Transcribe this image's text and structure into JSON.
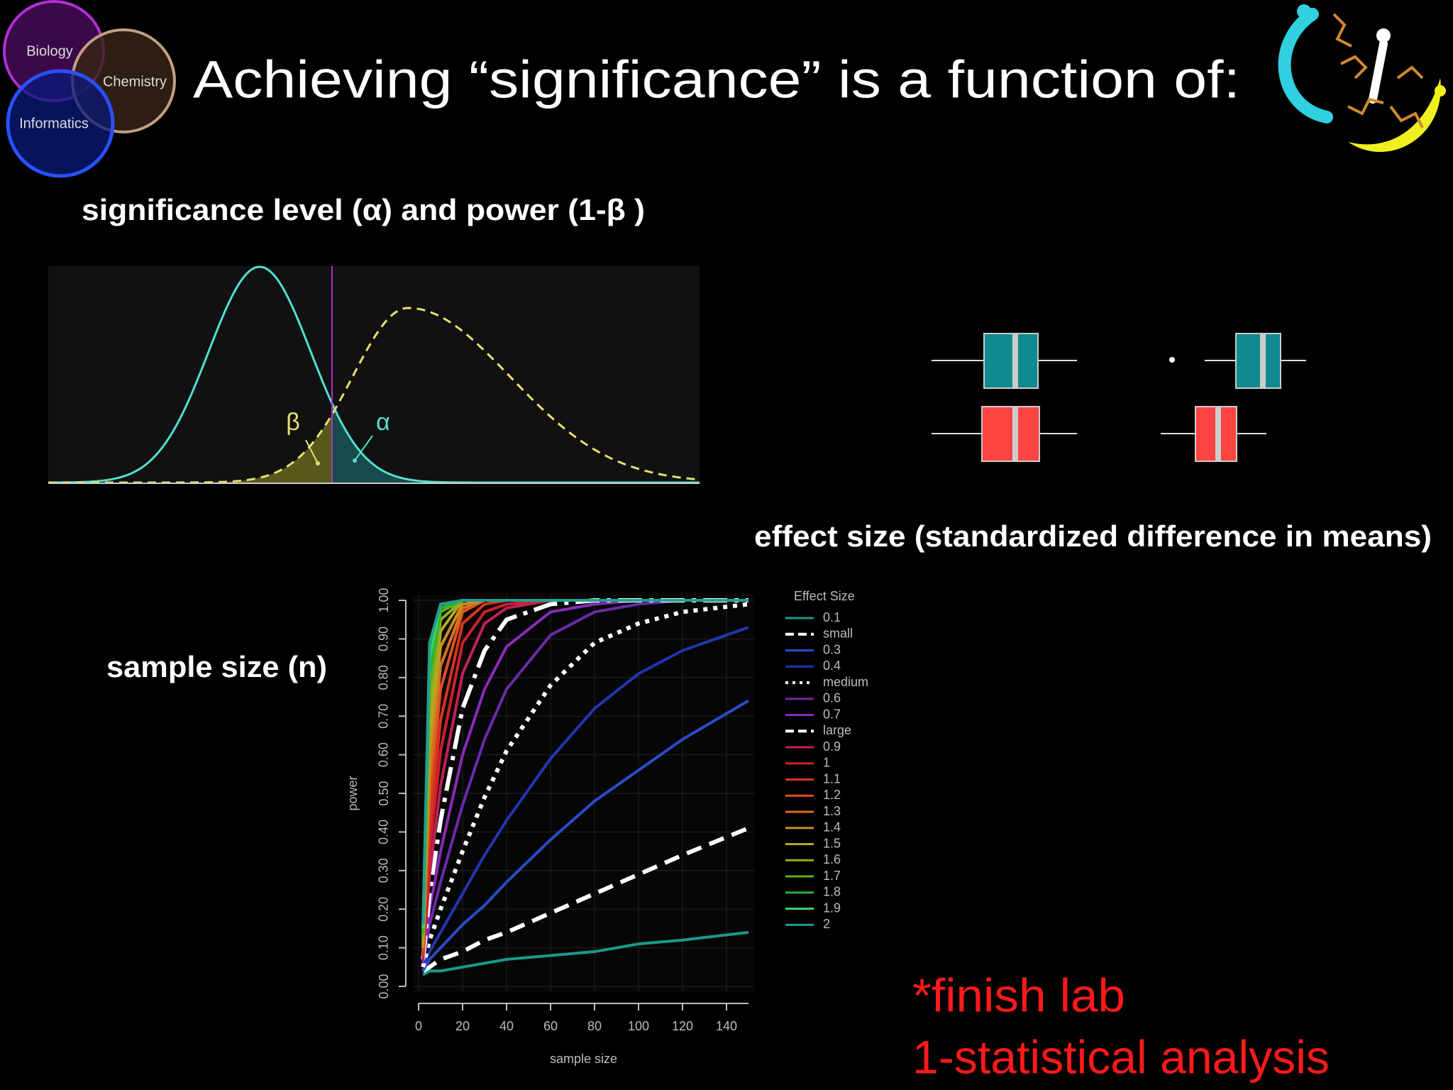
{
  "header": {
    "title": "Achieving “significance” is a function of:",
    "venn": [
      "Biology",
      "Chemistry",
      "Informatics"
    ]
  },
  "sections": {
    "alpha_power": "significance level (α) and power (1-β )",
    "effect_size": "effect size (standardized difference in means)",
    "sample_size": "sample size (n)"
  },
  "distribution_labels": {
    "beta": "β",
    "alpha": "α"
  },
  "notes": [
    "*finish lab",
    "1-statistical analysis"
  ],
  "chart_data": {
    "type": "line",
    "x_label": "sample size",
    "y_label": "power",
    "legend_title": "Effect Size",
    "x": [
      2,
      5,
      10,
      20,
      30,
      40,
      60,
      80,
      100,
      120,
      150
    ],
    "xlim": [
      0,
      150
    ],
    "ylim": [
      0,
      1
    ],
    "xticks": [
      0,
      20,
      40,
      60,
      80,
      100,
      120,
      140
    ],
    "yticks": [
      {
        "value": 0,
        "label": "0.00"
      },
      {
        "value": 0.1,
        "label": "0.10"
      },
      {
        "value": 0.2,
        "label": "0.20"
      },
      {
        "value": 0.3,
        "label": "0.30"
      },
      {
        "value": 0.4,
        "label": "0.40"
      },
      {
        "value": 0.5,
        "label": "0.50"
      },
      {
        "value": 0.6,
        "label": "0.60"
      },
      {
        "value": 0.7,
        "label": "0.70"
      },
      {
        "value": 0.8,
        "label": "0.80"
      },
      {
        "value": 0.9,
        "label": "0.90"
      },
      {
        "value": 1,
        "label": "1.00"
      }
    ],
    "grid": true,
    "series": [
      {
        "name": "0.1",
        "color": "#1a9a8a",
        "dash": "solid",
        "values": [
          0.03,
          0.04,
          0.04,
          0.05,
          0.06,
          0.07,
          0.08,
          0.09,
          0.11,
          0.12,
          0.14
        ]
      },
      {
        "name": "small",
        "color": "#ffffff",
        "dash": "dashed",
        "values": [
          0.04,
          0.05,
          0.07,
          0.09,
          0.12,
          0.14,
          0.19,
          0.24,
          0.29,
          0.34,
          0.41
        ]
      },
      {
        "name": "0.3",
        "color": "#2a4cc8",
        "dash": "solid",
        "values": [
          0.04,
          0.07,
          0.1,
          0.16,
          0.21,
          0.27,
          0.38,
          0.48,
          0.56,
          0.64,
          0.74
        ]
      },
      {
        "name": "0.4",
        "color": "#2236b0",
        "dash": "solid",
        "values": [
          0.05,
          0.09,
          0.14,
          0.24,
          0.34,
          0.43,
          0.59,
          0.72,
          0.81,
          0.87,
          0.93
        ]
      },
      {
        "name": "medium",
        "color": "#ffffff",
        "dash": "dotted",
        "values": [
          0.05,
          0.12,
          0.2,
          0.35,
          0.49,
          0.61,
          0.78,
          0.89,
          0.94,
          0.97,
          0.99
        ]
      },
      {
        "name": "0.6",
        "color": "#6a2aa8",
        "dash": "solid",
        "values": [
          0.06,
          0.16,
          0.27,
          0.47,
          0.64,
          0.77,
          0.91,
          0.97,
          0.99,
          1,
          1
        ]
      },
      {
        "name": "0.7",
        "color": "#8a2ab8",
        "dash": "solid",
        "values": [
          0.06,
          0.2,
          0.35,
          0.6,
          0.77,
          0.88,
          0.97,
          0.99,
          1,
          1,
          1
        ]
      },
      {
        "name": "large",
        "color": "#ffffff",
        "dash": "longdash",
        "values": [
          0.07,
          0.24,
          0.43,
          0.72,
          0.87,
          0.95,
          0.99,
          1,
          1,
          1,
          1
        ]
      },
      {
        "name": "0.9",
        "color": "#c0205a",
        "dash": "solid",
        "values": [
          0.07,
          0.29,
          0.52,
          0.81,
          0.94,
          0.98,
          1,
          1,
          1,
          1,
          1
        ]
      },
      {
        "name": "1",
        "color": "#d0202a",
        "dash": "solid",
        "values": [
          0.08,
          0.35,
          0.61,
          0.89,
          0.97,
          0.99,
          1,
          1,
          1,
          1,
          1
        ]
      },
      {
        "name": "1.1",
        "color": "#d83420",
        "dash": "solid",
        "values": [
          0.08,
          0.41,
          0.69,
          0.94,
          0.99,
          1,
          1,
          1,
          1,
          1,
          1
        ]
      },
      {
        "name": "1.2",
        "color": "#e05020",
        "dash": "solid",
        "values": [
          0.09,
          0.48,
          0.77,
          0.97,
          1,
          1,
          1,
          1,
          1,
          1,
          1
        ]
      },
      {
        "name": "1.3",
        "color": "#d87020",
        "dash": "solid",
        "values": [
          0.1,
          0.54,
          0.83,
          0.98,
          1,
          1,
          1,
          1,
          1,
          1,
          1
        ]
      },
      {
        "name": "1.4",
        "color": "#c89020",
        "dash": "solid",
        "values": [
          0.1,
          0.6,
          0.88,
          0.99,
          1,
          1,
          1,
          1,
          1,
          1,
          1
        ]
      },
      {
        "name": "1.5",
        "color": "#b8a820",
        "dash": "solid",
        "values": [
          0.11,
          0.66,
          0.92,
          1,
          1,
          1,
          1,
          1,
          1,
          1,
          1
        ]
      },
      {
        "name": "1.6",
        "color": "#90b020",
        "dash": "solid",
        "values": [
          0.12,
          0.72,
          0.95,
          1,
          1,
          1,
          1,
          1,
          1,
          1,
          1
        ]
      },
      {
        "name": "1.7",
        "color": "#60b020",
        "dash": "solid",
        "values": [
          0.13,
          0.77,
          0.97,
          1,
          1,
          1,
          1,
          1,
          1,
          1,
          1
        ]
      },
      {
        "name": "1.8",
        "color": "#30b030",
        "dash": "solid",
        "values": [
          0.14,
          0.81,
          0.98,
          1,
          1,
          1,
          1,
          1,
          1,
          1,
          1
        ]
      },
      {
        "name": "1.9",
        "color": "#40d060",
        "dash": "solid",
        "values": [
          0.15,
          0.85,
          0.99,
          1,
          1,
          1,
          1,
          1,
          1,
          1,
          1
        ]
      },
      {
        "name": "2",
        "color": "#20a090",
        "dash": "solid",
        "values": [
          0.16,
          0.89,
          0.99,
          1,
          1,
          1,
          1,
          1,
          1,
          1,
          1
        ]
      }
    ]
  }
}
